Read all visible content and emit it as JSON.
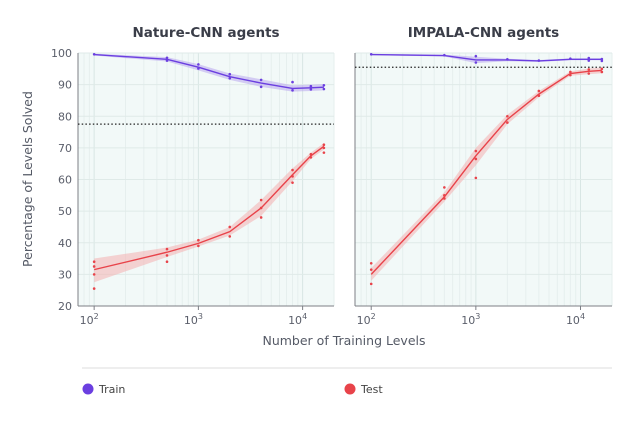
{
  "chart_data": {
    "type": "line",
    "ylabel": "Percentage of Levels Solved",
    "xlabel": "Number of Training Levels",
    "xscale": "log",
    "xlim": [
      70,
      20000
    ],
    "ylim": [
      20,
      100
    ],
    "yticks": [
      20,
      30,
      40,
      50,
      60,
      70,
      80,
      90,
      100
    ],
    "xticks": [
      {
        "value": 100,
        "base": "10",
        "exp": "2"
      },
      {
        "value": 1000,
        "base": "10",
        "exp": "3"
      },
      {
        "value": 10000,
        "base": "10",
        "exp": "4"
      }
    ],
    "grid": true,
    "legend": {
      "position": "bottom",
      "entries": [
        {
          "name": "Train",
          "color": "#6b3fe0"
        },
        {
          "name": "Test",
          "color": "#e8434a"
        }
      ]
    },
    "colors": {
      "train": "#6b3fe0",
      "train_band": "#b9a7ef",
      "test": "#e8434a",
      "test_band": "#f4b1b1",
      "background": "#f2f9f8",
      "reference": "#222222"
    },
    "panels": [
      {
        "title": "Nature-CNN agents",
        "reference_line": 77.5,
        "series": [
          {
            "name": "Train",
            "x": [
              100,
              500,
              1000,
              2000,
              4000,
              8000,
              12000,
              16000
            ],
            "y": [
              99.5,
              98.0,
              95.5,
              92.5,
              90.5,
              88.8,
              89.0,
              89.2
            ],
            "lower": [
              99.2,
              97.3,
              94.5,
              91.5,
              89.3,
              87.8,
              88.0,
              88.2
            ],
            "upper": [
              99.8,
              98.7,
              96.5,
              93.5,
              91.7,
              89.8,
              90.0,
              90.2
            ],
            "points": [
              [
                100,
                99.6
              ],
              [
                500,
                98.5
              ],
              [
                500,
                97.6
              ],
              [
                1000,
                96.4
              ],
              [
                1000,
                95.1
              ],
              [
                2000,
                93.3
              ],
              [
                2000,
                92.0
              ],
              [
                4000,
                91.5
              ],
              [
                4000,
                89.3
              ],
              [
                8000,
                90.8
              ],
              [
                8000,
                88.2
              ],
              [
                12000,
                89.5
              ],
              [
                12000,
                88.5
              ],
              [
                16000,
                89.8
              ],
              [
                16000,
                88.6
              ]
            ]
          },
          {
            "name": "Test",
            "x": [
              100,
              500,
              1000,
              2000,
              4000,
              8000,
              12000,
              16000
            ],
            "y": [
              31.5,
              37.0,
              39.8,
              43.5,
              51.0,
              61.5,
              67.5,
              70.5
            ],
            "lower": [
              27.5,
              35.5,
              38.8,
              42.3,
              48.5,
              59.5,
              66.5,
              69.5
            ],
            "upper": [
              35.0,
              38.5,
              41.0,
              45.0,
              53.5,
              63.5,
              68.5,
              71.5
            ],
            "points": [
              [
                100,
                34.0
              ],
              [
                100,
                32.5
              ],
              [
                100,
                30.0
              ],
              [
                100,
                25.5
              ],
              [
                500,
                38.0
              ],
              [
                500,
                36.0
              ],
              [
                500,
                34.0
              ],
              [
                1000,
                40.8
              ],
              [
                1000,
                39.0
              ],
              [
                2000,
                45.0
              ],
              [
                2000,
                42.0
              ],
              [
                4000,
                53.5
              ],
              [
                4000,
                51.0
              ],
              [
                4000,
                48.0
              ],
              [
                8000,
                63.0
              ],
              [
                8000,
                61.0
              ],
              [
                8000,
                59.0
              ],
              [
                12000,
                68.0
              ],
              [
                12000,
                67.0
              ],
              [
                16000,
                71.0
              ],
              [
                16000,
                70.0
              ],
              [
                16000,
                68.5
              ]
            ]
          }
        ]
      },
      {
        "title": "IMPALA-CNN agents",
        "reference_line": 95.5,
        "series": [
          {
            "name": "Train",
            "x": [
              100,
              500,
              1000,
              2000,
              4000,
              8000,
              12000,
              16000
            ],
            "y": [
              99.5,
              99.2,
              97.8,
              97.8,
              97.5,
              98.0,
              98.0,
              98.0
            ],
            "lower": [
              99.3,
              98.9,
              96.8,
              97.4,
              97.2,
              97.7,
              97.7,
              97.7
            ],
            "upper": [
              99.7,
              99.5,
              98.8,
              98.2,
              97.8,
              98.3,
              98.3,
              98.3
            ],
            "points": [
              [
                100,
                99.6
              ],
              [
                500,
                99.3
              ],
              [
                1000,
                99.0
              ],
              [
                1000,
                97.0
              ],
              [
                2000,
                98.0
              ],
              [
                4000,
                97.6
              ],
              [
                8000,
                98.2
              ],
              [
                12000,
                98.4
              ],
              [
                12000,
                97.6
              ],
              [
                16000,
                98.1
              ],
              [
                16000,
                97.5
              ]
            ]
          },
          {
            "name": "Test",
            "x": [
              100,
              500,
              1000,
              2000,
              4000,
              8000,
              12000,
              16000
            ],
            "y": [
              30.0,
              54.5,
              67.5,
              79.0,
              87.0,
              93.5,
              94.2,
              94.5
            ],
            "lower": [
              28.0,
              53.0,
              64.5,
              77.5,
              86.0,
              92.8,
              93.3,
              93.6
            ],
            "upper": [
              32.0,
              56.0,
              70.0,
              80.5,
              88.0,
              94.2,
              95.1,
              95.4
            ],
            "points": [
              [
                100,
                33.5
              ],
              [
                100,
                31.5
              ],
              [
                100,
                27.0
              ],
              [
                500,
                57.5
              ],
              [
                500,
                55.0
              ],
              [
                500,
                54.0
              ],
              [
                1000,
                69.0
              ],
              [
                1000,
                66.5
              ],
              [
                1000,
                60.5
              ],
              [
                2000,
                80.0
              ],
              [
                2000,
                78.0
              ],
              [
                4000,
                88.0
              ],
              [
                4000,
                86.5
              ],
              [
                8000,
                94.0
              ],
              [
                8000,
                93.0
              ],
              [
                12000,
                94.8
              ],
              [
                12000,
                93.5
              ],
              [
                16000,
                95.0
              ],
              [
                16000,
                94.0
              ]
            ]
          }
        ]
      }
    ]
  }
}
